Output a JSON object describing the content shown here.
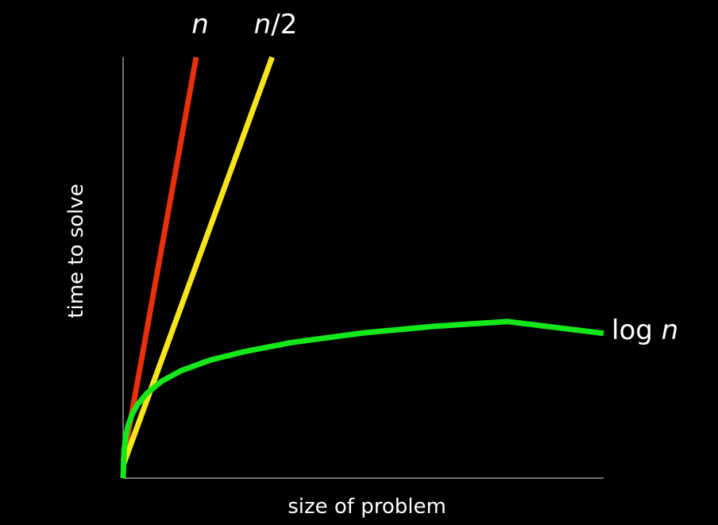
{
  "chart_data": {
    "type": "line",
    "xlabel": "size of problem",
    "ylabel": "time to solve",
    "grid": false,
    "legend": "none",
    "axes": {
      "x": true,
      "y": true,
      "tick_labels": false
    },
    "xlim": [
      0,
      100
    ],
    "ylim": [
      0,
      100
    ],
    "colors": {
      "background": "#000000",
      "axis": "#999999",
      "text": "#ffffff"
    },
    "series": [
      {
        "name": "n",
        "label_parts": [
          {
            "text": "n",
            "italic": true
          }
        ],
        "color": "#e8300f",
        "points": [
          [
            0,
            4
          ],
          [
            15.2,
            100
          ]
        ]
      },
      {
        "name": "n/2",
        "label_parts": [
          {
            "text": "n",
            "italic": true
          },
          {
            "text": "/2",
            "italic": false
          }
        ],
        "color": "#f5e51a",
        "points": [
          [
            0,
            3
          ],
          [
            31,
            100
          ]
        ]
      },
      {
        "name": "log n",
        "label_parts": [
          {
            "text": "log ",
            "italic": false
          },
          {
            "text": "n",
            "italic": true
          }
        ],
        "color": "#14e81a",
        "x": [
          0,
          0.2,
          0.5,
          1,
          2,
          3,
          5,
          8,
          12,
          18,
          25,
          35,
          50,
          65,
          80,
          100
        ],
        "y": [
          0,
          6.5,
          9.5,
          12.4,
          15.5,
          17.5,
          20.2,
          23.0,
          25.5,
          28.0,
          30.0,
          32.2,
          34.5,
          36.1,
          37.2,
          34.4
        ]
      }
    ]
  }
}
